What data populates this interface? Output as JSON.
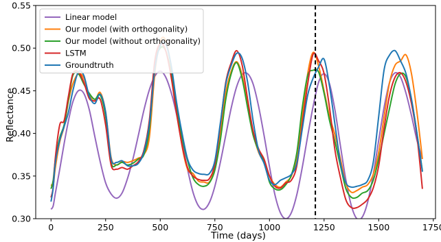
{
  "chart_data": {
    "type": "line",
    "title": "",
    "xlabel": "Time (days)",
    "ylabel": "Reflectance",
    "xlim": [
      -70,
      1760
    ],
    "ylim": [
      0.3,
      0.55
    ],
    "xticks": [
      0,
      250,
      500,
      750,
      1000,
      1250,
      1500,
      1750
    ],
    "yticks": [
      0.3,
      0.35,
      0.4,
      0.45,
      0.5,
      0.55
    ],
    "ytick_labels": [
      "0.30",
      "0.35",
      "0.40",
      "0.45",
      "0.50",
      "0.55"
    ],
    "grid": false,
    "legend_position": "top-left",
    "vline": {
      "x": 1210,
      "style": "dashed",
      "color": "#000000"
    },
    "series": [
      {
        "name": "Linear model",
        "color": "#9467bd",
        "x": [
          0,
          10,
          20,
          40,
          60,
          80,
          100,
          125,
          150,
          175,
          200,
          225,
          250,
          275,
          300,
          325,
          350,
          375,
          400,
          425,
          450,
          475,
          500,
          525,
          550,
          575,
          600,
          625,
          650,
          675,
          700,
          725,
          750,
          775,
          800,
          825,
          850,
          875,
          900,
          925,
          950,
          975,
          1000,
          1025,
          1050,
          1075,
          1100,
          1125,
          1150,
          1175,
          1200,
          1225,
          1250,
          1275,
          1300,
          1325,
          1350,
          1375,
          1400,
          1425,
          1450,
          1475,
          1500,
          1525,
          1550,
          1575,
          1600,
          1625,
          1650,
          1675,
          1700
        ],
        "y": [
          0.311,
          0.315,
          0.33,
          0.358,
          0.388,
          0.415,
          0.437,
          0.45,
          0.447,
          0.428,
          0.397,
          0.367,
          0.342,
          0.329,
          0.324,
          0.33,
          0.347,
          0.37,
          0.398,
          0.427,
          0.451,
          0.467,
          0.473,
          0.466,
          0.448,
          0.422,
          0.39,
          0.358,
          0.331,
          0.315,
          0.311,
          0.319,
          0.338,
          0.366,
          0.398,
          0.43,
          0.455,
          0.469,
          0.47,
          0.458,
          0.432,
          0.398,
          0.361,
          0.328,
          0.307,
          0.3,
          0.307,
          0.328,
          0.36,
          0.397,
          0.432,
          0.46,
          0.47,
          0.458,
          0.427,
          0.385,
          0.345,
          0.315,
          0.3,
          0.302,
          0.32,
          0.352,
          0.392,
          0.431,
          0.46,
          0.471,
          0.466,
          0.447,
          0.421,
          0.392,
          0.37
        ]
      },
      {
        "name": "Our model (with orthogonality)",
        "color": "#ff7f0e",
        "x": [
          0,
          10,
          20,
          40,
          60,
          80,
          100,
          125,
          150,
          175,
          200,
          225,
          250,
          275,
          300,
          325,
          350,
          375,
          400,
          425,
          450,
          475,
          500,
          525,
          550,
          575,
          600,
          625,
          650,
          675,
          700,
          725,
          750,
          775,
          800,
          825,
          850,
          875,
          900,
          925,
          950,
          975,
          1000,
          1025,
          1050,
          1075,
          1100,
          1125,
          1150,
          1175,
          1200,
          1225,
          1250,
          1275,
          1300,
          1325,
          1350,
          1375,
          1400,
          1425,
          1450,
          1475,
          1500,
          1525,
          1550,
          1575,
          1600,
          1625,
          1650,
          1675,
          1700
        ],
        "y": [
          0.34,
          0.339,
          0.36,
          0.39,
          0.408,
          0.438,
          0.458,
          0.47,
          0.465,
          0.445,
          0.438,
          0.448,
          0.425,
          0.372,
          0.363,
          0.367,
          0.366,
          0.368,
          0.371,
          0.375,
          0.395,
          0.47,
          0.508,
          0.509,
          0.478,
          0.43,
          0.385,
          0.358,
          0.353,
          0.344,
          0.343,
          0.343,
          0.36,
          0.4,
          0.448,
          0.473,
          0.484,
          0.468,
          0.432,
          0.4,
          0.378,
          0.366,
          0.35,
          0.34,
          0.337,
          0.343,
          0.35,
          0.372,
          0.42,
          0.47,
          0.495,
          0.479,
          0.45,
          0.42,
          0.398,
          0.37,
          0.341,
          0.331,
          0.333,
          0.337,
          0.34,
          0.352,
          0.378,
          0.42,
          0.46,
          0.48,
          0.485,
          0.492,
          0.47,
          0.425,
          0.37
        ]
      },
      {
        "name": "Our model (without orthogonality)",
        "color": "#2ca02c",
        "x": [
          0,
          10,
          20,
          40,
          60,
          80,
          100,
          125,
          150,
          175,
          200,
          225,
          250,
          275,
          300,
          325,
          350,
          375,
          400,
          425,
          450,
          475,
          500,
          525,
          550,
          575,
          600,
          625,
          650,
          675,
          700,
          725,
          750,
          775,
          800,
          825,
          850,
          875,
          900,
          925,
          950,
          975,
          1000,
          1025,
          1050,
          1075,
          1100,
          1125,
          1150,
          1175,
          1200,
          1225,
          1250,
          1275,
          1300,
          1325,
          1350,
          1375,
          1400,
          1425,
          1450,
          1475,
          1500,
          1525,
          1550,
          1575,
          1600,
          1625,
          1650,
          1675,
          1700
        ],
        "y": [
          0.335,
          0.345,
          0.369,
          0.395,
          0.41,
          0.44,
          0.468,
          0.47,
          0.458,
          0.447,
          0.44,
          0.445,
          0.42,
          0.366,
          0.363,
          0.366,
          0.363,
          0.365,
          0.37,
          0.375,
          0.405,
          0.48,
          0.5,
          0.497,
          0.47,
          0.43,
          0.395,
          0.368,
          0.348,
          0.34,
          0.338,
          0.342,
          0.357,
          0.392,
          0.44,
          0.47,
          0.483,
          0.464,
          0.43,
          0.398,
          0.38,
          0.368,
          0.343,
          0.335,
          0.334,
          0.34,
          0.351,
          0.377,
          0.43,
          0.468,
          0.474,
          0.472,
          0.447,
          0.415,
          0.39,
          0.362,
          0.335,
          0.325,
          0.325,
          0.33,
          0.333,
          0.345,
          0.37,
          0.4,
          0.43,
          0.458,
          0.47,
          0.466,
          0.44,
          0.4,
          0.356
        ]
      },
      {
        "name": "LSTM",
        "color": "#d62728",
        "x": [
          0,
          10,
          20,
          40,
          60,
          80,
          100,
          125,
          150,
          175,
          200,
          225,
          250,
          275,
          300,
          325,
          350,
          375,
          400,
          425,
          450,
          475,
          500,
          525,
          550,
          575,
          600,
          625,
          650,
          675,
          700,
          725,
          750,
          775,
          800,
          825,
          850,
          875,
          900,
          925,
          950,
          975,
          1000,
          1025,
          1050,
          1075,
          1100,
          1125,
          1150,
          1175,
          1200,
          1225,
          1250,
          1275,
          1300,
          1325,
          1350,
          1375,
          1400,
          1425,
          1450,
          1475,
          1500,
          1525,
          1550,
          1575,
          1600,
          1625,
          1650,
          1675,
          1700
        ],
        "y": [
          0.325,
          0.337,
          0.372,
          0.41,
          0.415,
          0.444,
          0.47,
          0.472,
          0.46,
          0.441,
          0.438,
          0.44,
          0.41,
          0.363,
          0.358,
          0.36,
          0.358,
          0.362,
          0.367,
          0.38,
          0.415,
          0.485,
          0.505,
          0.497,
          0.466,
          0.423,
          0.386,
          0.36,
          0.35,
          0.346,
          0.345,
          0.347,
          0.364,
          0.41,
          0.46,
          0.483,
          0.497,
          0.48,
          0.44,
          0.403,
          0.382,
          0.37,
          0.35,
          0.338,
          0.336,
          0.342,
          0.345,
          0.362,
          0.41,
          0.458,
          0.493,
          0.485,
          0.47,
          0.43,
          0.38,
          0.348,
          0.322,
          0.313,
          0.313,
          0.317,
          0.323,
          0.336,
          0.362,
          0.407,
          0.445,
          0.466,
          0.471,
          0.46,
          0.435,
          0.397,
          0.335
        ]
      },
      {
        "name": "Groundtruth",
        "color": "#1f77b4",
        "x": [
          0,
          10,
          20,
          40,
          60,
          80,
          100,
          125,
          150,
          175,
          200,
          225,
          250,
          275,
          300,
          325,
          350,
          375,
          400,
          425,
          450,
          475,
          500,
          525,
          550,
          575,
          600,
          625,
          650,
          675,
          700,
          725,
          750,
          775,
          800,
          825,
          850,
          875,
          900,
          925,
          950,
          975,
          1000,
          1025,
          1050,
          1075,
          1100,
          1125,
          1150,
          1175,
          1200,
          1225,
          1250,
          1275,
          1300,
          1325,
          1350,
          1375,
          1400,
          1425,
          1450,
          1475,
          1500,
          1525,
          1550,
          1575,
          1600,
          1625,
          1650,
          1675,
          1700
        ],
        "y": [
          0.32,
          0.336,
          0.366,
          0.392,
          0.408,
          0.425,
          0.45,
          0.472,
          0.468,
          0.444,
          0.435,
          0.446,
          0.425,
          0.37,
          0.366,
          0.368,
          0.362,
          0.362,
          0.365,
          0.378,
          0.41,
          0.475,
          0.503,
          0.505,
          0.48,
          0.436,
          0.4,
          0.37,
          0.357,
          0.353,
          0.352,
          0.353,
          0.368,
          0.412,
          0.458,
          0.48,
          0.494,
          0.488,
          0.46,
          0.415,
          0.38,
          0.365,
          0.345,
          0.34,
          0.345,
          0.348,
          0.352,
          0.365,
          0.405,
          0.445,
          0.465,
          0.478,
          0.487,
          0.455,
          0.41,
          0.365,
          0.342,
          0.337,
          0.338,
          0.34,
          0.345,
          0.366,
          0.42,
          0.475,
          0.492,
          0.497,
          0.485,
          0.47,
          0.44,
          0.4,
          0.355
        ]
      }
    ]
  }
}
